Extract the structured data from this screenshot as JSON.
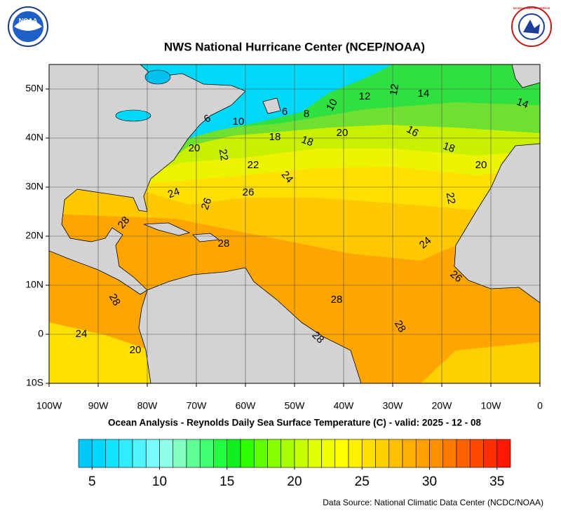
{
  "header": {
    "title": "NWS National Hurricane Center (NCEP/NOAA)",
    "left_logo": "NOAA",
    "right_logo": "NATIONAL WEATHER SERVICE"
  },
  "map": {
    "xlim": [
      -100,
      0
    ],
    "ylim": [
      -10,
      55
    ],
    "xticks": [
      {
        "value": -100,
        "label": "100W"
      },
      {
        "value": -90,
        "label": "90W"
      },
      {
        "value": -80,
        "label": "80W"
      },
      {
        "value": -70,
        "label": "70W"
      },
      {
        "value": -60,
        "label": "60W"
      },
      {
        "value": -50,
        "label": "50W"
      },
      {
        "value": -40,
        "label": "40W"
      },
      {
        "value": -30,
        "label": "30W"
      },
      {
        "value": -20,
        "label": "20W"
      },
      {
        "value": -10,
        "label": "10W"
      },
      0
    ],
    "yticks": [
      {
        "value": 50,
        "label": "50N"
      },
      {
        "value": 40,
        "label": "40N"
      },
      {
        "value": 30,
        "label": "30N"
      },
      {
        "value": 20,
        "label": "20N"
      },
      {
        "value": 10,
        "label": "10N"
      },
      0,
      {
        "value": -10,
        "label": "10S"
      }
    ],
    "grid": true,
    "contour_labels": [
      6,
      6,
      8,
      10,
      12,
      12,
      14,
      14,
      10,
      18,
      18,
      20,
      16,
      18,
      20,
      22,
      22,
      24,
      20,
      24,
      26,
      26,
      22,
      28,
      28,
      24,
      26,
      28,
      28,
      28,
      28,
      24,
      20
    ],
    "subtitle": "Ocean Analysis - Reynolds Daily Sea Surface Temperature (C) - valid: 2025 - 12 - 08"
  },
  "colorbar": {
    "range": [
      4,
      36
    ],
    "ticks": [
      5,
      10,
      15,
      20,
      25,
      30,
      35
    ],
    "colors": [
      "#00c8f8",
      "#00d8ff",
      "#10e4ff",
      "#30ecff",
      "#50f4ff",
      "#78fcff",
      "#90ffe8",
      "#80ffc0",
      "#60ff98",
      "#40ff70",
      "#20ff40",
      "#10f020",
      "#30ff00",
      "#60ff00",
      "#88ff00",
      "#a8ff00",
      "#c8ff00",
      "#e0ff00",
      "#f0ff00",
      "#ffff00",
      "#fff000",
      "#ffe000",
      "#ffd000",
      "#ffc000",
      "#ffb000",
      "#ffa000",
      "#ff9000",
      "#ff7800",
      "#ff6000",
      "#ff4800",
      "#ff3000",
      "#ff1800"
    ]
  },
  "footer": {
    "source": "Data Source: National Climatic Data Center (NCDC/NOAA)"
  }
}
